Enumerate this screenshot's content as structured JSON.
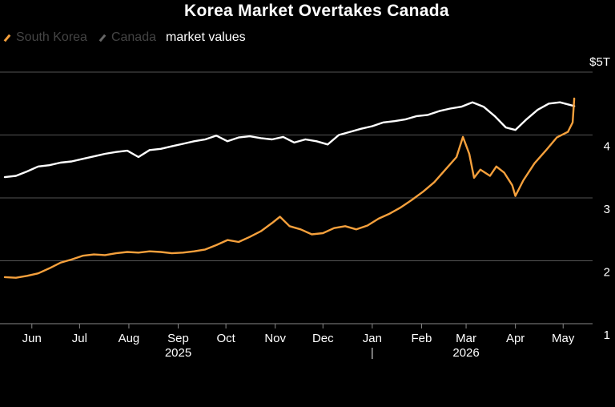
{
  "title": "Korea Market Overtakes Canada",
  "subtitle": "market values",
  "chart_data": {
    "type": "line",
    "title": "Korea Market Overtakes Canada",
    "subtitle": "market values",
    "y_unit_label": "$5T",
    "ylim": [
      1,
      5
    ],
    "y_ticks": [
      {
        "value": 5,
        "label": "$5T"
      },
      {
        "value": 4,
        "label": "4"
      },
      {
        "value": 3,
        "label": "3"
      },
      {
        "value": 2,
        "label": "2"
      },
      {
        "value": 1,
        "label": "1"
      }
    ],
    "x_range": [
      "2025-05-15",
      "2026-05-18"
    ],
    "x_ticks": [
      {
        "date": "2025-06-01",
        "label": "Jun"
      },
      {
        "date": "2025-07-01",
        "label": "Jul"
      },
      {
        "date": "2025-08-01",
        "label": "Aug"
      },
      {
        "date": "2025-09-01",
        "label": "Sep"
      },
      {
        "date": "2025-10-01",
        "label": "Oct"
      },
      {
        "date": "2025-11-01",
        "label": "Nov"
      },
      {
        "date": "2025-12-01",
        "label": "Dec"
      },
      {
        "date": "2026-01-01",
        "label": "Jan"
      },
      {
        "date": "2026-02-01",
        "label": "Feb"
      },
      {
        "date": "2026-03-01",
        "label": "Mar"
      },
      {
        "date": "2026-04-01",
        "label": "Apr"
      },
      {
        "date": "2026-05-01",
        "label": "May"
      }
    ],
    "year_labels": [
      {
        "date": "2025-09-01",
        "label": "2025"
      },
      {
        "date": "2026-03-01",
        "label": "2026"
      }
    ],
    "grid": "horizontal",
    "legend_position": "top-left",
    "series": [
      {
        "name": "South Korea",
        "color": "#f5a03c",
        "points": [
          [
            "2025-05-15",
            1.74
          ],
          [
            "2025-05-22",
            1.73
          ],
          [
            "2025-05-29",
            1.76
          ],
          [
            "2025-06-05",
            1.8
          ],
          [
            "2025-06-12",
            1.88
          ],
          [
            "2025-06-19",
            1.97
          ],
          [
            "2025-06-26",
            2.02
          ],
          [
            "2025-07-03",
            2.08
          ],
          [
            "2025-07-10",
            2.1
          ],
          [
            "2025-07-17",
            2.09
          ],
          [
            "2025-07-24",
            2.12
          ],
          [
            "2025-07-31",
            2.14
          ],
          [
            "2025-08-07",
            2.13
          ],
          [
            "2025-08-14",
            2.15
          ],
          [
            "2025-08-21",
            2.14
          ],
          [
            "2025-08-28",
            2.12
          ],
          [
            "2025-09-04",
            2.13
          ],
          [
            "2025-09-11",
            2.15
          ],
          [
            "2025-09-18",
            2.18
          ],
          [
            "2025-09-25",
            2.25
          ],
          [
            "2025-10-02",
            2.33
          ],
          [
            "2025-10-09",
            2.3
          ],
          [
            "2025-10-16",
            2.38
          ],
          [
            "2025-10-23",
            2.47
          ],
          [
            "2025-10-30",
            2.6
          ],
          [
            "2025-11-04",
            2.7
          ],
          [
            "2025-11-10",
            2.55
          ],
          [
            "2025-11-17",
            2.5
          ],
          [
            "2025-11-24",
            2.42
          ],
          [
            "2025-12-01",
            2.44
          ],
          [
            "2025-12-08",
            2.52
          ],
          [
            "2025-12-15",
            2.55
          ],
          [
            "2025-12-22",
            2.5
          ],
          [
            "2025-12-29",
            2.56
          ],
          [
            "2026-01-05",
            2.67
          ],
          [
            "2026-01-12",
            2.75
          ],
          [
            "2026-01-19",
            2.85
          ],
          [
            "2026-01-26",
            2.97
          ],
          [
            "2026-02-02",
            3.1
          ],
          [
            "2026-02-09",
            3.25
          ],
          [
            "2026-02-16",
            3.45
          ],
          [
            "2026-02-23",
            3.65
          ],
          [
            "2026-02-27",
            3.97
          ],
          [
            "2026-03-03",
            3.7
          ],
          [
            "2026-03-06",
            3.32
          ],
          [
            "2026-03-10",
            3.45
          ],
          [
            "2026-03-16",
            3.35
          ],
          [
            "2026-03-20",
            3.5
          ],
          [
            "2026-03-25",
            3.4
          ],
          [
            "2026-03-30",
            3.2
          ],
          [
            "2026-04-01",
            3.03
          ],
          [
            "2026-04-06",
            3.28
          ],
          [
            "2026-04-13",
            3.55
          ],
          [
            "2026-04-20",
            3.75
          ],
          [
            "2026-04-27",
            3.96
          ],
          [
            "2026-05-04",
            4.05
          ],
          [
            "2026-05-07",
            4.2
          ],
          [
            "2026-05-08",
            4.58
          ]
        ]
      },
      {
        "name": "Canada",
        "color": "#ffffff",
        "points": [
          [
            "2025-05-15",
            3.33
          ],
          [
            "2025-05-22",
            3.35
          ],
          [
            "2025-05-29",
            3.42
          ],
          [
            "2025-06-05",
            3.5
          ],
          [
            "2025-06-12",
            3.52
          ],
          [
            "2025-06-19",
            3.56
          ],
          [
            "2025-06-26",
            3.58
          ],
          [
            "2025-07-03",
            3.62
          ],
          [
            "2025-07-10",
            3.66
          ],
          [
            "2025-07-17",
            3.7
          ],
          [
            "2025-07-24",
            3.73
          ],
          [
            "2025-07-31",
            3.75
          ],
          [
            "2025-08-07",
            3.65
          ],
          [
            "2025-08-14",
            3.76
          ],
          [
            "2025-08-21",
            3.78
          ],
          [
            "2025-08-28",
            3.82
          ],
          [
            "2025-09-04",
            3.86
          ],
          [
            "2025-09-11",
            3.9
          ],
          [
            "2025-09-18",
            3.93
          ],
          [
            "2025-09-25",
            3.99
          ],
          [
            "2025-10-02",
            3.9
          ],
          [
            "2025-10-09",
            3.96
          ],
          [
            "2025-10-16",
            3.98
          ],
          [
            "2025-10-23",
            3.95
          ],
          [
            "2025-10-30",
            3.93
          ],
          [
            "2025-11-06",
            3.97
          ],
          [
            "2025-11-13",
            3.88
          ],
          [
            "2025-11-20",
            3.93
          ],
          [
            "2025-11-27",
            3.9
          ],
          [
            "2025-12-04",
            3.85
          ],
          [
            "2025-12-11",
            4.0
          ],
          [
            "2025-12-18",
            4.05
          ],
          [
            "2025-12-25",
            4.1
          ],
          [
            "2026-01-01",
            4.14
          ],
          [
            "2026-01-08",
            4.2
          ],
          [
            "2026-01-15",
            4.22
          ],
          [
            "2026-01-22",
            4.25
          ],
          [
            "2026-01-29",
            4.3
          ],
          [
            "2026-02-05",
            4.32
          ],
          [
            "2026-02-12",
            4.38
          ],
          [
            "2026-02-19",
            4.42
          ],
          [
            "2026-02-26",
            4.45
          ],
          [
            "2026-03-05",
            4.52
          ],
          [
            "2026-03-12",
            4.45
          ],
          [
            "2026-03-19",
            4.3
          ],
          [
            "2026-03-26",
            4.12
          ],
          [
            "2026-04-01",
            4.08
          ],
          [
            "2026-04-08",
            4.25
          ],
          [
            "2026-04-15",
            4.4
          ],
          [
            "2026-04-22",
            4.5
          ],
          [
            "2026-04-29",
            4.52
          ],
          [
            "2026-05-05",
            4.48
          ],
          [
            "2026-05-08",
            4.46
          ]
        ]
      }
    ]
  }
}
